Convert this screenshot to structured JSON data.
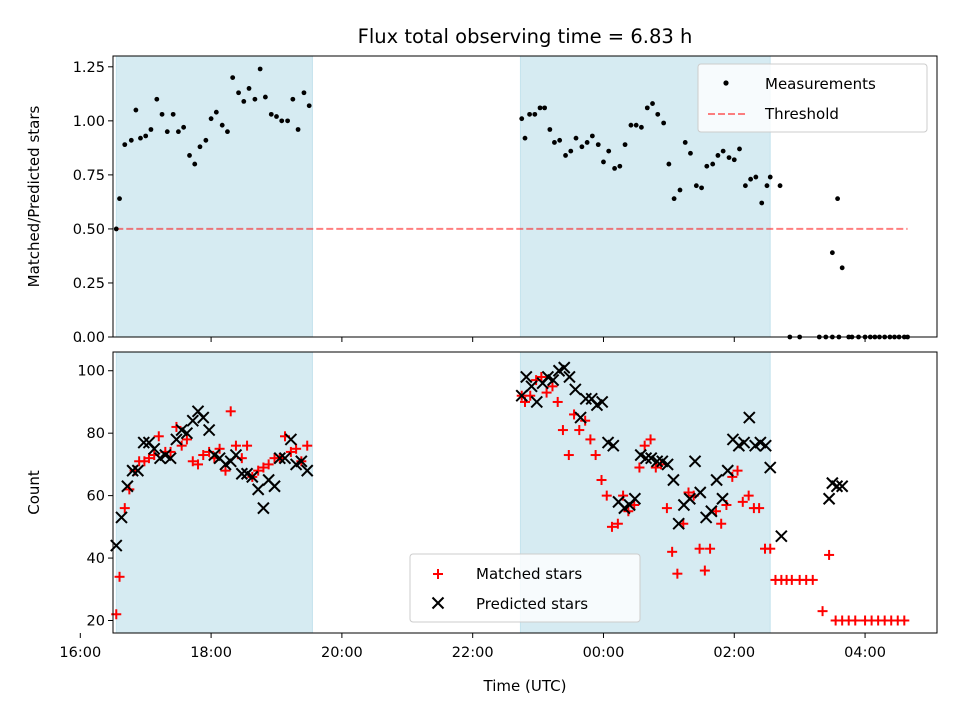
{
  "chart_data": [
    {
      "type": "scatter",
      "title": "Flux total observing time = 6.83 h",
      "xlabel": "",
      "ylabel": "Matched/Predicted stars",
      "xlim": [
        16.5,
        29.1
      ],
      "ylim": [
        0.0,
        1.3
      ],
      "yticks": [
        0.0,
        0.25,
        0.5,
        0.75,
        1.0,
        1.25
      ],
      "ytick_labels": [
        "0.00",
        "0.25",
        "0.50",
        "0.75",
        "1.00",
        "1.25"
      ],
      "shaded_spans": [
        [
          16.55,
          19.55
        ],
        [
          22.73,
          26.55
        ]
      ],
      "threshold": {
        "label": "Threshold",
        "value": 0.5,
        "x": [
          16.55,
          28.65
        ],
        "color": "#ff0000"
      },
      "legend": {
        "position": "upper right",
        "entries": [
          "Measurements",
          "Threshold"
        ]
      },
      "series": [
        {
          "name": "Measurements",
          "color": "#000000",
          "x": [
            16.55,
            16.6,
            16.68,
            16.78,
            16.85,
            16.92,
            17.0,
            17.08,
            17.17,
            17.25,
            17.33,
            17.42,
            17.5,
            17.58,
            17.67,
            17.75,
            17.83,
            17.92,
            18.0,
            18.08,
            18.17,
            18.25,
            18.33,
            18.42,
            18.5,
            18.58,
            18.67,
            18.75,
            18.83,
            18.92,
            19.0,
            19.08,
            19.17,
            19.25,
            19.33,
            19.42,
            19.5,
            22.75,
            22.8,
            22.87,
            22.95,
            23.03,
            23.1,
            23.18,
            23.25,
            23.33,
            23.42,
            23.5,
            23.58,
            23.67,
            23.75,
            23.83,
            23.92,
            24.0,
            24.08,
            24.17,
            24.25,
            24.33,
            24.42,
            24.5,
            24.58,
            24.67,
            24.75,
            24.83,
            24.92,
            25.0,
            25.08,
            25.17,
            25.25,
            25.33,
            25.42,
            25.5,
            25.58,
            25.67,
            25.75,
            25.83,
            25.92,
            26.0,
            26.08,
            26.17,
            26.25,
            26.33,
            26.42,
            26.5,
            26.55,
            26.7,
            26.85,
            27.0,
            27.3,
            27.4,
            27.5,
            27.6,
            27.75,
            27.8,
            27.9,
            28.0,
            28.08,
            28.15,
            28.22,
            28.3,
            28.38,
            28.45,
            28.52,
            28.6,
            28.65,
            27.5,
            27.58,
            27.65
          ],
          "y": [
            0.5,
            0.64,
            0.89,
            0.91,
            1.05,
            0.92,
            0.93,
            0.96,
            1.1,
            1.03,
            0.95,
            1.03,
            0.95,
            0.97,
            0.84,
            0.8,
            0.88,
            0.91,
            1.01,
            1.04,
            0.98,
            0.95,
            1.2,
            1.13,
            1.09,
            1.15,
            1.1,
            1.24,
            1.11,
            1.03,
            1.02,
            1.0,
            1.0,
            1.1,
            0.96,
            1.13,
            1.07,
            1.01,
            0.92,
            1.03,
            1.03,
            1.06,
            1.06,
            0.96,
            0.9,
            0.91,
            0.84,
            0.86,
            0.92,
            0.88,
            0.9,
            0.93,
            0.89,
            0.81,
            0.86,
            0.78,
            0.79,
            0.89,
            0.98,
            0.98,
            0.97,
            1.06,
            1.08,
            1.03,
            0.99,
            0.8,
            0.64,
            0.68,
            0.9,
            0.85,
            0.7,
            0.69,
            0.79,
            0.8,
            0.84,
            0.86,
            0.83,
            0.82,
            0.87,
            0.7,
            0.73,
            0.74,
            0.62,
            0.7,
            0.74,
            0.7,
            0.0,
            0.0,
            0.0,
            0.0,
            0.0,
            0.0,
            0.0,
            0.0,
            0.0,
            0.0,
            0.0,
            0.0,
            0.0,
            0.0,
            0.0,
            0.0,
            0.0,
            0.0,
            0.0,
            0.39,
            0.64,
            0.32
          ]
        }
      ]
    },
    {
      "type": "scatter",
      "title": "",
      "xlabel": "Time (UTC)",
      "ylabel": "Count",
      "xlim": [
        16.5,
        29.1
      ],
      "ylim": [
        16,
        106
      ],
      "xticks": [
        16.0,
        18.0,
        20.0,
        22.0,
        24.0,
        26.0,
        28.0
      ],
      "xtick_labels": [
        "16:00",
        "18:00",
        "20:00",
        "22:00",
        "00:00",
        "02:00",
        "04:00"
      ],
      "yticks": [
        20,
        40,
        60,
        80,
        100
      ],
      "ytick_labels": [
        "20",
        "40",
        "60",
        "80",
        "100"
      ],
      "shaded_spans": [
        [
          16.55,
          19.55
        ],
        [
          22.73,
          26.55
        ]
      ],
      "legend": {
        "position": "lower center",
        "entries": [
          "Matched stars",
          "Predicted stars"
        ]
      },
      "series": [
        {
          "name": "Matched stars",
          "marker": "plus",
          "color": "#ff0000",
          "x": [
            16.55,
            16.6,
            16.68,
            16.75,
            16.83,
            16.9,
            16.98,
            17.05,
            17.13,
            17.2,
            17.3,
            17.38,
            17.47,
            17.55,
            17.63,
            17.72,
            17.8,
            17.88,
            17.97,
            18.05,
            18.13,
            18.22,
            18.3,
            18.38,
            18.47,
            18.55,
            18.63,
            18.72,
            18.8,
            18.88,
            18.97,
            19.05,
            19.13,
            19.22,
            19.3,
            19.38,
            19.47,
            22.75,
            22.8,
            22.88,
            22.97,
            23.05,
            23.13,
            23.22,
            23.3,
            23.38,
            23.47,
            23.55,
            23.63,
            23.72,
            23.8,
            23.88,
            23.97,
            24.05,
            24.13,
            24.22,
            24.3,
            24.38,
            24.47,
            24.55,
            24.63,
            24.72,
            24.8,
            24.88,
            24.97,
            25.05,
            25.13,
            25.22,
            25.3,
            25.38,
            25.47,
            25.55,
            25.63,
            25.72,
            25.8,
            25.88,
            25.97,
            26.05,
            26.13,
            26.22,
            26.3,
            26.38,
            26.47,
            26.55,
            26.63,
            26.72,
            26.8,
            26.88,
            27.0,
            27.1,
            27.2,
            27.35,
            27.45,
            27.55,
            27.65,
            27.75,
            27.85,
            28.0,
            28.1,
            28.2,
            28.3,
            28.4,
            28.5,
            28.6
          ],
          "y": [
            22,
            34,
            56,
            62,
            68,
            71,
            71,
            72,
            73,
            79,
            74,
            74,
            82,
            76,
            78,
            71,
            70,
            73,
            74,
            72,
            75,
            68,
            87,
            76,
            72,
            76,
            66,
            68,
            69,
            70,
            72,
            72,
            79,
            74,
            75,
            71,
            76,
            92,
            90,
            92,
            97,
            98,
            93,
            95,
            90,
            81,
            73,
            86,
            81,
            84,
            78,
            73,
            65,
            60,
            50,
            51,
            60,
            55,
            57,
            69,
            76,
            78,
            69,
            70,
            56,
            42,
            35,
            51,
            61,
            60,
            43,
            36,
            43,
            55,
            51,
            57,
            66,
            68,
            58,
            60,
            56,
            56,
            43,
            43,
            33,
            33,
            33,
            33,
            33,
            33,
            33,
            23,
            41,
            20,
            20,
            20,
            20,
            20,
            20,
            20,
            20,
            20,
            20,
            20
          ]
        },
        {
          "name": "Predicted stars",
          "marker": "x",
          "color": "#000000",
          "x": [
            16.55,
            16.63,
            16.72,
            16.8,
            16.88,
            16.97,
            17.05,
            17.13,
            17.22,
            17.3,
            17.38,
            17.47,
            17.55,
            17.63,
            17.72,
            17.8,
            17.88,
            17.97,
            18.05,
            18.13,
            18.22,
            18.3,
            18.38,
            18.47,
            18.55,
            18.63,
            18.72,
            18.8,
            18.88,
            18.97,
            19.05,
            19.13,
            19.22,
            19.3,
            19.38,
            19.47,
            22.75,
            22.82,
            22.9,
            22.98,
            23.07,
            23.15,
            23.23,
            23.32,
            23.4,
            23.48,
            23.57,
            23.65,
            23.73,
            23.82,
            23.9,
            23.98,
            24.07,
            24.15,
            24.23,
            24.32,
            24.4,
            24.48,
            24.57,
            24.65,
            24.73,
            24.82,
            24.9,
            24.98,
            25.07,
            25.15,
            25.23,
            25.32,
            25.4,
            25.48,
            25.57,
            25.65,
            25.73,
            25.82,
            25.9,
            25.98,
            26.07,
            26.15,
            26.23,
            26.32,
            26.4,
            26.48,
            26.55,
            26.72,
            27.45,
            27.5,
            27.57,
            27.65
          ],
          "y": [
            44,
            53,
            63,
            68,
            68,
            77,
            77,
            75,
            72,
            73,
            72,
            78,
            81,
            80,
            84,
            87,
            85,
            81,
            73,
            72,
            70,
            71,
            73,
            67,
            67,
            66,
            62,
            56,
            65,
            63,
            72,
            72,
            78,
            70,
            71,
            68,
            92,
            98,
            95,
            90,
            96,
            98,
            97,
            100,
            101,
            98,
            94,
            85,
            91,
            91,
            89,
            90,
            77,
            76,
            58,
            56,
            57,
            59,
            73,
            72,
            72,
            71,
            71,
            70,
            65,
            51,
            57,
            59,
            71,
            61,
            53,
            55,
            65,
            59,
            68,
            78,
            76,
            77,
            85,
            76,
            77,
            76,
            69,
            47,
            59,
            64,
            63,
            63
          ]
        }
      ]
    }
  ]
}
